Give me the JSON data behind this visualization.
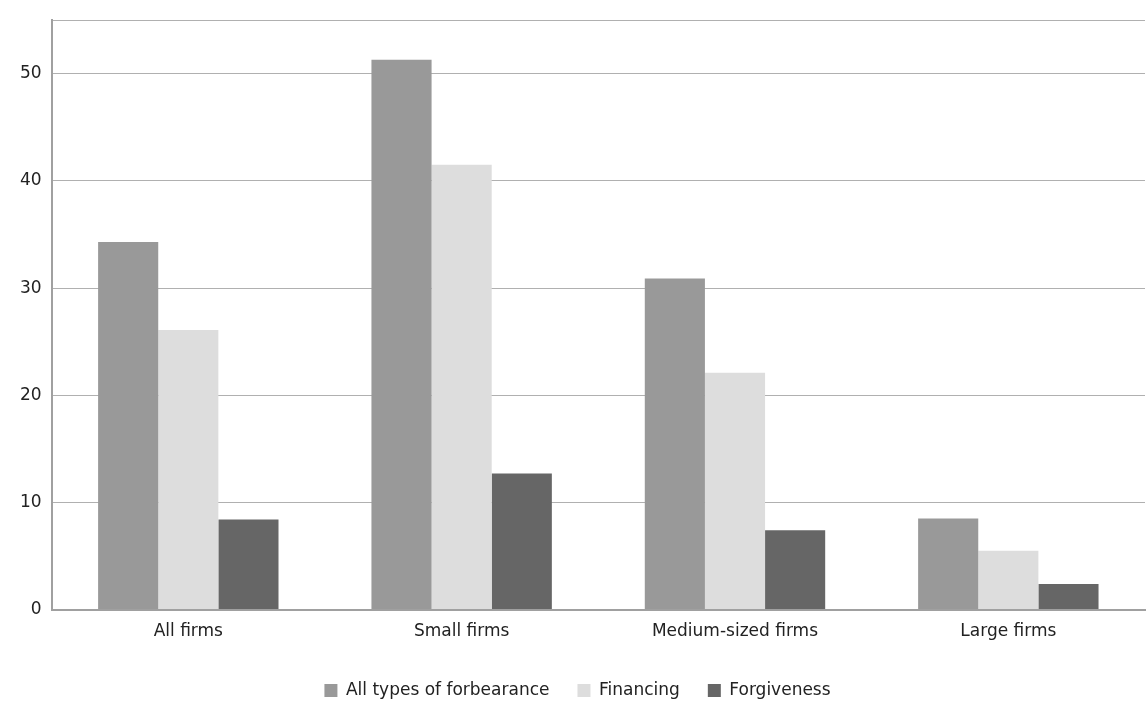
{
  "chart_data": {
    "type": "bar",
    "categories": [
      "All firms",
      "Small firms",
      "Medium-sized firms",
      "Large firms"
    ],
    "series": [
      {
        "name": "All types of forbearance",
        "color": "#999999",
        "values": [
          34.3,
          51.3,
          30.9,
          8.5
        ]
      },
      {
        "name": "Financing",
        "color": "#dddddd",
        "values": [
          26.1,
          41.5,
          22.1,
          5.5
        ]
      },
      {
        "name": "Forgiveness",
        "color": "#666666",
        "values": [
          8.4,
          12.7,
          7.4,
          2.4
        ]
      }
    ],
    "ylim": [
      0,
      55
    ],
    "yticks": [
      0,
      10,
      20,
      30,
      40,
      50,
      {
        "value": 55,
        "label": null
      }
    ],
    "grid": "y",
    "legend": "bottom"
  }
}
